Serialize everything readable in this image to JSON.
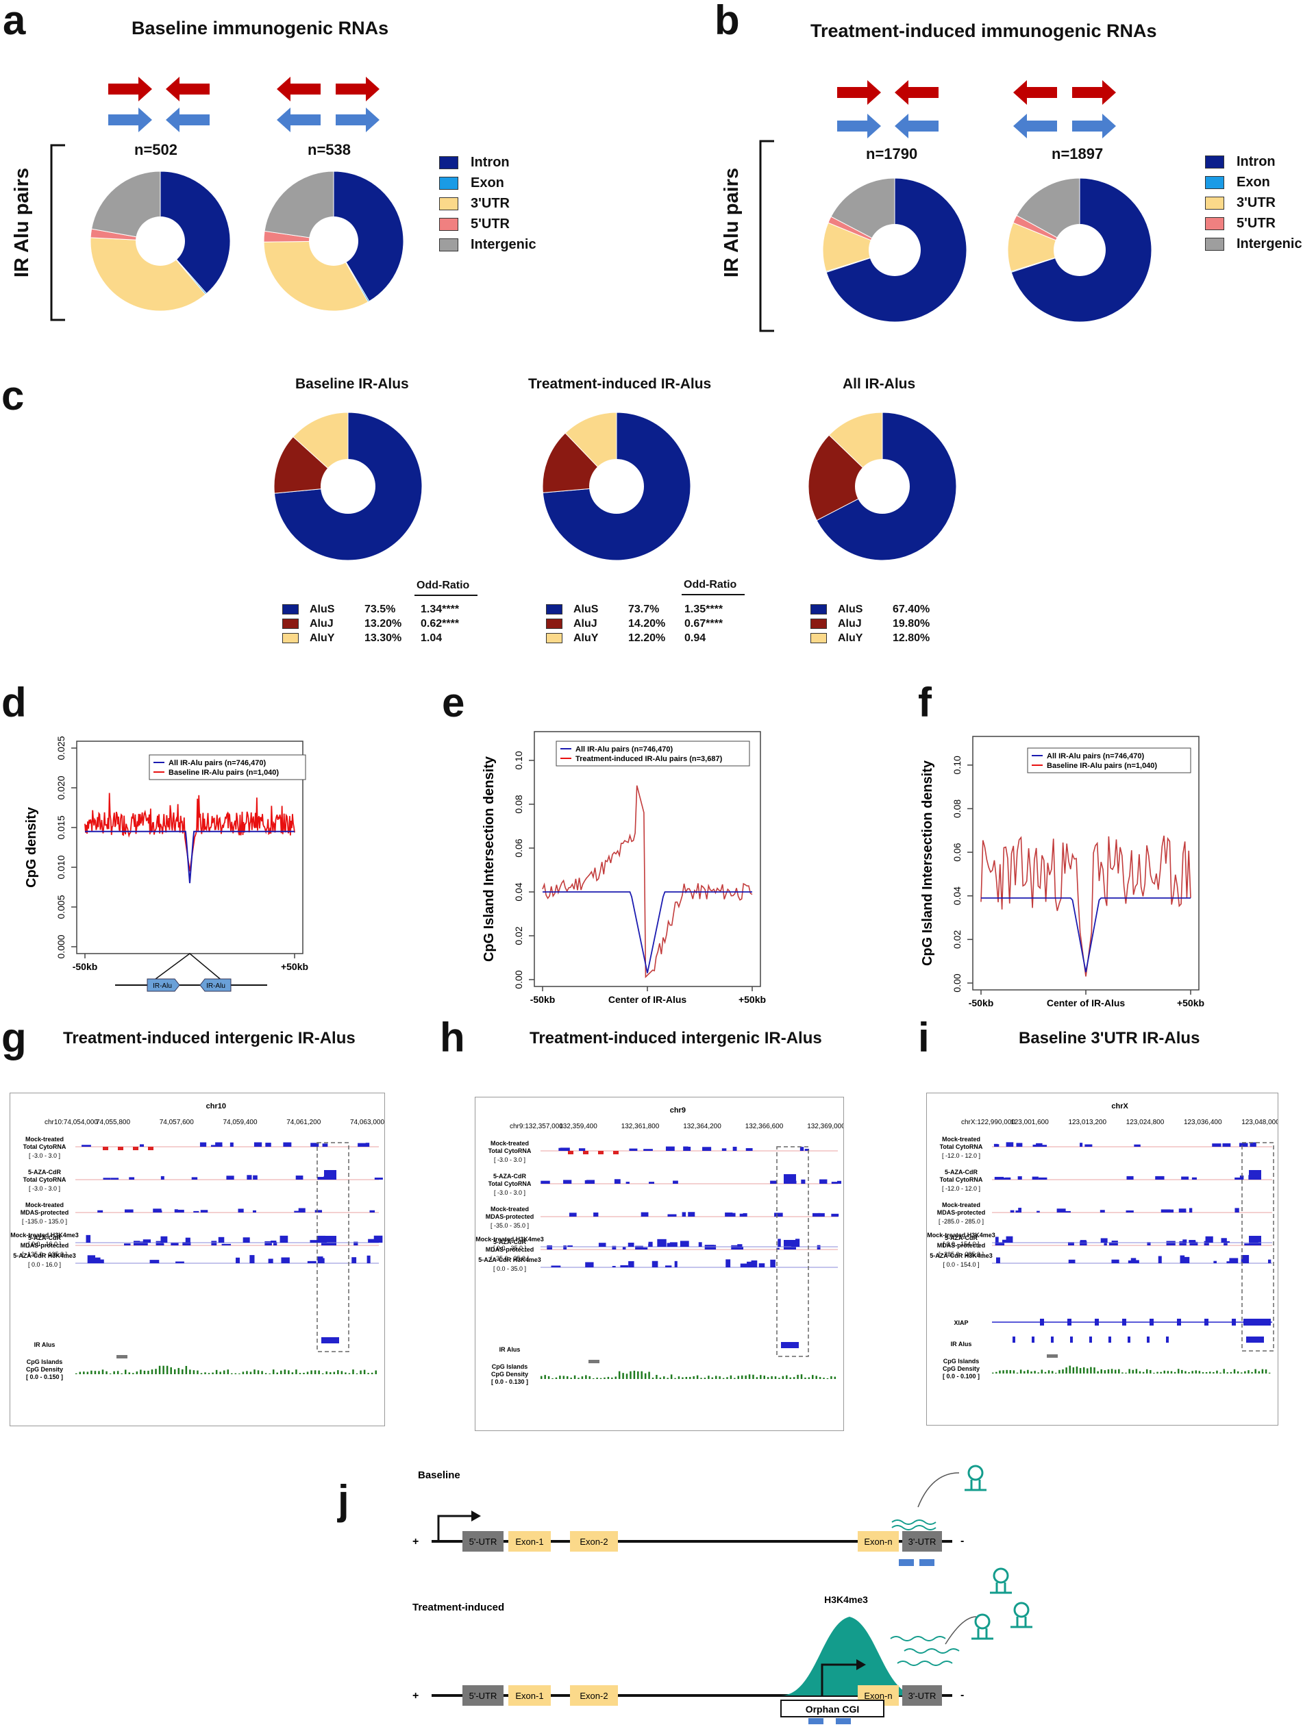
{
  "panels": {
    "a": {
      "letter": "a",
      "title": "Baseline immunogenic RNAs",
      "axis": "IR Alu pairs",
      "n1": "n=502",
      "n2": "n=538"
    },
    "b": {
      "letter": "b",
      "title": "Treatment-induced immunogenic RNAs",
      "axis": "IR Alu pairs",
      "n1": "n=1790",
      "n2": "n=1897"
    },
    "c": {
      "letter": "c",
      "titles": [
        "Baseline IR-Alus",
        "Treatment-induced IR-Alus",
        "All IR-Alus"
      ],
      "odd_ratio": "Odd-Ratio"
    },
    "d": {
      "letter": "d"
    },
    "e": {
      "letter": "e"
    },
    "f": {
      "letter": "f"
    },
    "g": {
      "letter": "g",
      "title": "Treatment-induced intergenic IR-Alus"
    },
    "h": {
      "letter": "h",
      "title": "Treatment-induced intergenic IR-Alus"
    },
    "i": {
      "letter": "i",
      "title": "Baseline 3'UTR IR-Alus"
    },
    "j": {
      "letter": "j"
    }
  },
  "legend_region": [
    "Intron",
    "Exon",
    "3'UTR",
    "5'UTR",
    "Intergenic"
  ],
  "colors": {
    "intron": "#0b1f8c",
    "exon": "#1a9be6",
    "utr3": "#fbd98a",
    "utr5": "#f08080",
    "intergenic": "#9e9e9e",
    "red_arrow": "#c00000",
    "blue_arrow": "#4a7fcf",
    "aluS": "#0b1f8c",
    "aluJ": "#8b1a12",
    "aluY": "#fbd98a",
    "line_blue": "#1b1bb0",
    "line_red": "#e81010",
    "green": "#1f7a1f",
    "teal": "#139c8c"
  },
  "alu_tables": [
    {
      "rows": [
        {
          "name": "AluS",
          "pct": "73.5%",
          "or": "1.34****"
        },
        {
          "name": "AluJ",
          "pct": "13.20%",
          "or": "0.62****"
        },
        {
          "name": "AluY",
          "pct": "13.30%",
          "or": "1.04"
        }
      ]
    },
    {
      "rows": [
        {
          "name": "AluS",
          "pct": "73.7%",
          "or": "1.35****"
        },
        {
          "name": "AluJ",
          "pct": "14.20%",
          "or": "0.67****"
        },
        {
          "name": "AluY",
          "pct": "12.20%",
          "or": "0.94"
        }
      ]
    },
    {
      "rows": [
        {
          "name": "AluS",
          "pct": "67.40%"
        },
        {
          "name": "AluJ",
          "pct": "19.80%"
        },
        {
          "name": "AluY",
          "pct": "12.80%"
        }
      ]
    }
  ],
  "chart_data": [
    {
      "id": "a1",
      "type": "pie",
      "title": "Baseline immunogenic RNAs",
      "n": "n=502",
      "labels": [
        "Intron",
        "Exon",
        "3'UTR",
        "5'UTR",
        "Intergenic"
      ],
      "values": [
        38.5,
        0.3,
        37,
        2,
        22.2
      ]
    },
    {
      "id": "a2",
      "type": "pie",
      "title": "Baseline immunogenic RNAs",
      "n": "n=538",
      "labels": [
        "Intron",
        "Exon",
        "3'UTR",
        "5'UTR",
        "Intergenic"
      ],
      "values": [
        41.5,
        0.3,
        33,
        2.5,
        22.7
      ]
    },
    {
      "id": "b1",
      "type": "pie",
      "title": "Treatment-induced immunogenic RNAs",
      "n": "n=1790",
      "labels": [
        "Intron",
        "Exon",
        "3'UTR",
        "5'UTR",
        "Intergenic"
      ],
      "values": [
        70,
        0.2,
        11,
        1.5,
        17.3
      ]
    },
    {
      "id": "b2",
      "type": "pie",
      "title": "Treatment-induced immunogenic RNAs",
      "n": "n=1897",
      "labels": [
        "Intron",
        "Exon",
        "3'UTR",
        "5'UTR",
        "Intergenic"
      ],
      "values": [
        70,
        0.2,
        11,
        1.8,
        17
      ]
    },
    {
      "id": "c1",
      "type": "pie",
      "title": "Baseline IR-Alus",
      "labels": [
        "AluS",
        "AluJ",
        "AluY"
      ],
      "values": [
        73.5,
        13.2,
        13.3
      ]
    },
    {
      "id": "c2",
      "type": "pie",
      "title": "Treatment-induced IR-Alus",
      "labels": [
        "AluS",
        "AluJ",
        "AluY"
      ],
      "values": [
        73.7,
        14.2,
        12.2
      ]
    },
    {
      "id": "c3",
      "type": "pie",
      "title": "All IR-Alus",
      "labels": [
        "AluS",
        "AluJ",
        "AluY"
      ],
      "values": [
        67.4,
        19.8,
        12.8
      ]
    },
    {
      "id": "d",
      "type": "line",
      "ylabel": "CpG density",
      "yticks": [
        "0.000",
        "0.005",
        "0.010",
        "0.015",
        "0.020",
        "0.025"
      ],
      "ylim": [
        0,
        0.025
      ],
      "xticks": [
        "-50kb",
        "+50kb"
      ],
      "legend": [
        "All IR-Alu pairs (n=746,470)",
        "Baseline IR-Alu pairs (n=1,040)"
      ],
      "series": [
        {
          "name": "All IR-Alu pairs (n=746,470)",
          "baseline": 0.0145,
          "dip": 0.008
        },
        {
          "name": "Baseline IR-Alu pairs (n=1,040)",
          "baseline": 0.0155,
          "dip": 0.0095
        }
      ],
      "diagram_labels": [
        "IR-Alu",
        "IR-Alu"
      ]
    },
    {
      "id": "e",
      "type": "line",
      "ylabel": "CpG Island Intersection density",
      "yticks": [
        "0.00",
        "0.02",
        "0.04",
        "0.06",
        "0.08",
        "0.10"
      ],
      "ylim": [
        0,
        0.11
      ],
      "xticks": [
        "-50kb",
        "Center of IR-Alus",
        "+50kb"
      ],
      "legend": [
        "All IR-Alu pairs (n=746,470)",
        "Treatment-induced IR-Alu pairs (n=3,687)"
      ],
      "series": [
        {
          "name": "All IR-Alu pairs (n=746,470)",
          "baseline": 0.04,
          "dip": 0.003
        },
        {
          "name": "Treatment-induced IR-Alu pairs (n=3,687)",
          "peak": 0.092,
          "dip": 0.0
        }
      ]
    },
    {
      "id": "f",
      "type": "line",
      "ylabel": "CpG Island Intersection density",
      "yticks": [
        "0.00",
        "0.02",
        "0.04",
        "0.06",
        "0.08",
        "0.10"
      ],
      "ylim": [
        0,
        0.11
      ],
      "xticks": [
        "-50kb",
        "Center of IR-Alus",
        "+50kb"
      ],
      "legend": [
        "All IR-Alu pairs (n=746,470)",
        "Baseline IR-Alu pairs (n=1,040)"
      ],
      "series": [
        {
          "name": "All IR-Alu pairs (n=746,470)",
          "baseline": 0.04,
          "dip": 0.005
        },
        {
          "name": "Baseline IR-Alu pairs (n=1,040)",
          "baseline": 0.045,
          "dip": 0.003
        }
      ]
    }
  ],
  "igv": [
    {
      "chrom": "chr10",
      "coord": "chr10:74,054,000",
      "ticks": [
        "74,055,800",
        "74,057,600",
        "74,059,400",
        "74,061,200",
        "74,063,000"
      ],
      "tracks": [
        {
          "label": "Mock-treated\nTotal CytoRNA",
          "range": "[ -3.0 - 3.0 ]"
        },
        {
          "label": "5-AZA-CdR\nTotal CytoRNA",
          "range": "[ -3.0 - 3.0 ]"
        },
        {
          "label": "Mock-treated\nMDAS-protected",
          "range": "[ -135.0 - 135.0 ]"
        },
        {
          "label": "5-AZA-CdR\nMDAS-protected",
          "range": "[ -135.0 - 135.0 ]"
        },
        {
          "label": "Mock-treated H3K4me3",
          "range": "[ 0.0 - 16.0 ]"
        },
        {
          "label": "5-AZA-CdR H3K4me3",
          "range": "[ 0.0 - 16.0 ]"
        }
      ],
      "bottom": [
        "IR Alus",
        "CpG Islands",
        "CpG Density",
        "[ 0.0 - 0.150 ]"
      ]
    },
    {
      "chrom": "chr9",
      "coord": "chr9:132,357,000",
      "ticks": [
        "132,359,400",
        "132,361,800",
        "132,364,200",
        "132,366,600",
        "132,369,000"
      ],
      "tracks": [
        {
          "label": "Mock-treated\nTotal CytoRNA",
          "range": "[ -3.0 - 3.0 ]"
        },
        {
          "label": "5-AZA-CdR\nTotal CytoRNA",
          "range": "[ -3.0 - 3.0 ]"
        },
        {
          "label": "Mock-treated\nMDAS-protected",
          "range": "[ -35.0 - 35.0 ]"
        },
        {
          "label": "5-AZA-CdR\nMDAS-protected",
          "range": "[ -35.0 - 35.0 ]"
        },
        {
          "label": "Mock-treated H3K4me3",
          "range": "[ 0.0 - 35.0 ]"
        },
        {
          "label": "5-AZA-CdR H3K4me3",
          "range": "[ 0.0 - 35.0 ]"
        }
      ],
      "bottom": [
        "IR Alus",
        "CpG Islands",
        "CpG Density",
        "[ 0.0 - 0.130 ]"
      ]
    },
    {
      "chrom": "chrX",
      "coord": "chrX:122,990,000",
      "ticks": [
        "123,001,600",
        "123,013,200",
        "123,024,800",
        "123,036,400",
        "123,048,000"
      ],
      "tracks": [
        {
          "label": "Mock-treated\nTotal CytoRNA",
          "range": "[ -12.0 - 12.0 ]"
        },
        {
          "label": "5-AZA-CdR\nTotal CytoRNA",
          "range": "[ -12.0 - 12.0 ]"
        },
        {
          "label": "Mock-treated\nMDAS-protected",
          "range": "[ -285.0 - 285.0 ]"
        },
        {
          "label": "5-AZA-CdR\nMDAS-protected",
          "range": "[ -285.0 - 285.0 ]"
        },
        {
          "label": "Mock-treated H3K4me3",
          "range": "[ 0.0 - 154.0 ]"
        },
        {
          "label": "5-AZA-CdR H3K4me3",
          "range": "[ 0.0 - 154.0 ]"
        }
      ],
      "gene": "XIAP",
      "bottom": [
        "IR Alus",
        "CpG Islands",
        "CpG Density",
        "[ 0.0 - 0.100 ]"
      ]
    }
  ],
  "schematic": {
    "baseline": "Baseline",
    "treatment": "Treatment-induced",
    "plus": "+",
    "minus": "-",
    "exons": [
      "5'-UTR",
      "Exon-1",
      "Exon-2",
      "Exon-n",
      "3'-UTR"
    ],
    "exons2": [
      "5'-UTR",
      "Exon-1",
      "Exon-2",
      "Exon-n",
      "3'-UTR"
    ],
    "h3k4me3": "H3K4me3",
    "orphan": "Orphan CGI"
  }
}
